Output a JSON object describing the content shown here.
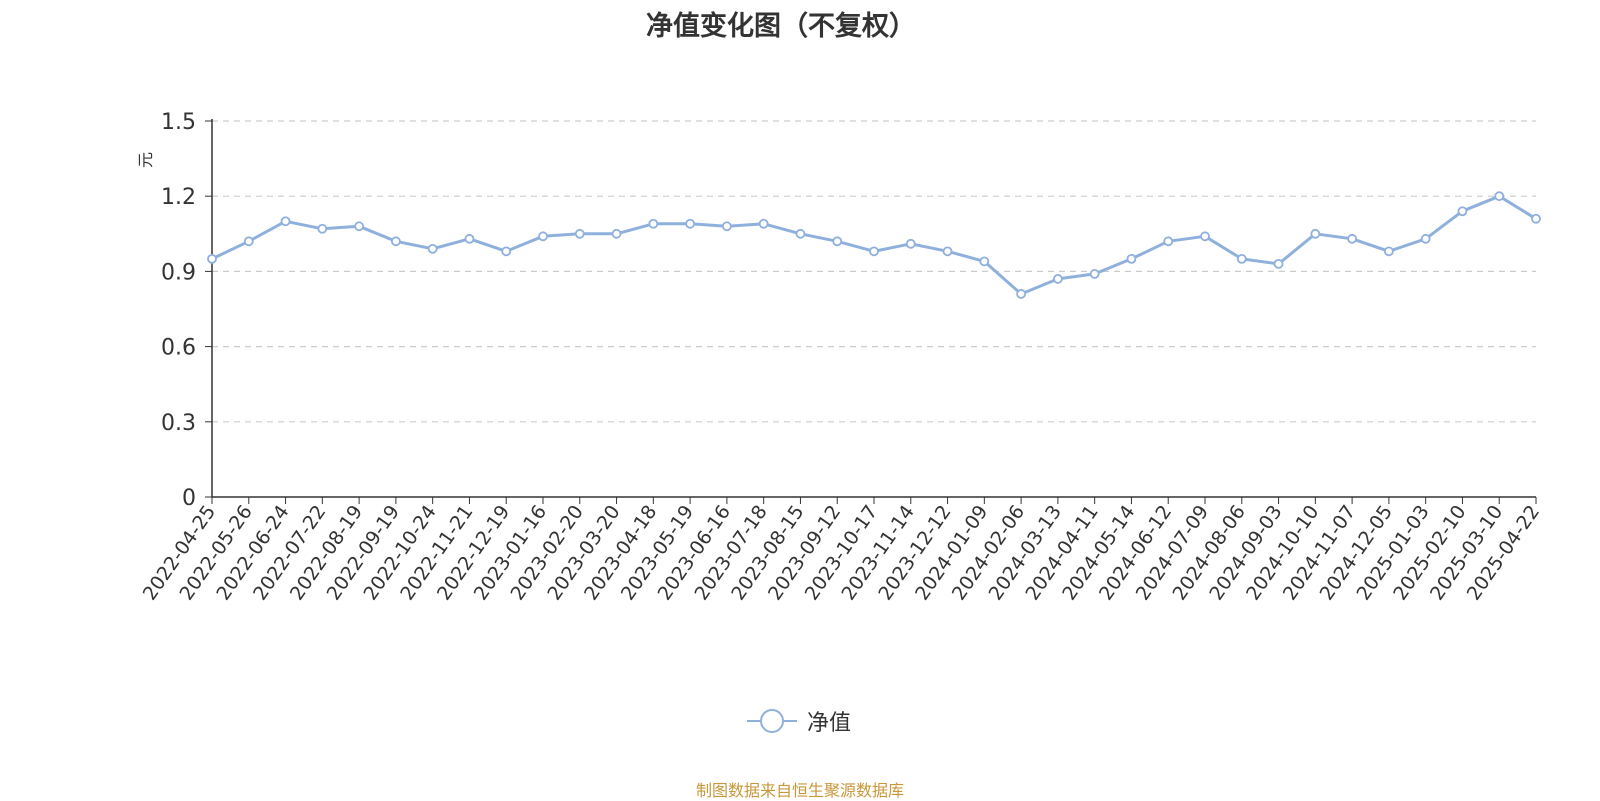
{
  "chart_data": {
    "type": "line",
    "title": "净值变化图（不复权）",
    "ylabel": "元",
    "ylim": [
      0,
      1.5
    ],
    "yticks": [
      "0",
      "0.3",
      "0.6",
      "0.9",
      "1.2",
      "1.5"
    ],
    "grid": true,
    "legend_position": "bottom",
    "x": [
      "2022-04-25",
      "2022-05-26",
      "2022-06-24",
      "2022-07-22",
      "2022-08-19",
      "2022-09-19",
      "2022-10-24",
      "2022-11-21",
      "2022-12-19",
      "2023-01-16",
      "2023-02-20",
      "2023-03-20",
      "2023-04-18",
      "2023-05-19",
      "2023-06-16",
      "2023-07-18",
      "2023-08-15",
      "2023-09-12",
      "2023-10-17",
      "2023-11-14",
      "2023-12-12",
      "2024-01-09",
      "2024-02-06",
      "2024-03-13",
      "2024-04-11",
      "2024-05-14",
      "2024-06-12",
      "2024-07-09",
      "2024-08-06",
      "2024-09-03",
      "2024-10-10",
      "2024-11-07",
      "2024-12-05",
      "2025-01-03",
      "2025-02-10",
      "2025-03-10",
      "2025-04-22"
    ],
    "series": [
      {
        "name": "净值",
        "color": "#8fb0dd",
        "values": [
          0.95,
          1.02,
          1.1,
          1.07,
          1.08,
          1.02,
          0.99,
          1.03,
          0.98,
          1.04,
          1.05,
          1.05,
          1.09,
          1.09,
          1.08,
          1.09,
          1.05,
          1.02,
          0.98,
          1.01,
          0.98,
          0.94,
          0.81,
          0.87,
          0.89,
          0.95,
          1.02,
          1.04,
          0.95,
          0.93,
          1.05,
          1.03,
          0.98,
          1.03,
          1.14,
          1.2,
          1.11
        ]
      }
    ]
  },
  "legend": {
    "series_name": "净值"
  },
  "source_note": "制图数据来自恒生聚源数据库"
}
